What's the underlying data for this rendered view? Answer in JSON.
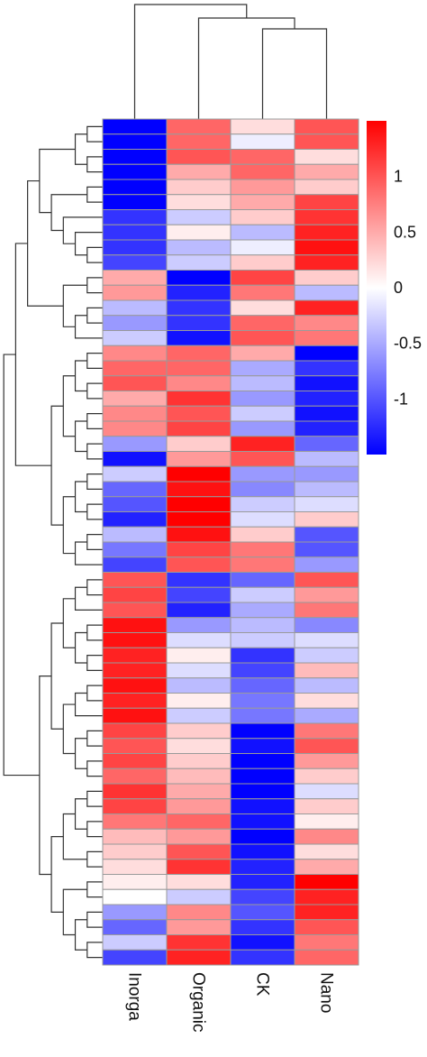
{
  "chart_data": {
    "type": "heatmap",
    "title": "",
    "columns": [
      "Inorga",
      "Organic",
      "CK",
      "Nano"
    ],
    "legend": {
      "position": "right",
      "ticks": [
        1,
        0.5,
        0,
        -0.5,
        -1
      ],
      "tick_labels": [
        "1",
        "0.5",
        "0",
        "-0.5",
        "-1"
      ],
      "range": [
        -1.5,
        1.5
      ],
      "low_color": "#0000ff",
      "mid_color": "#ffffff",
      "high_color": "#ff0000"
    },
    "row_dendrogram": true,
    "column_dendrogram": true,
    "values": [
      [
        -1.5,
        0.9,
        0.2,
        1.0
      ],
      [
        -1.5,
        0.9,
        -0.1,
        1.0
      ],
      [
        -1.5,
        1.0,
        0.9,
        0.2
      ],
      [
        -1.5,
        0.5,
        0.9,
        0.5
      ],
      [
        -1.5,
        0.3,
        0.6,
        0.3
      ],
      [
        -1.5,
        0.2,
        0.5,
        1.1
      ],
      [
        -1.2,
        -0.3,
        0.3,
        1.2
      ],
      [
        -1.2,
        0.1,
        -0.4,
        1.3
      ],
      [
        -1.2,
        -0.4,
        -0.1,
        1.4
      ],
      [
        -1.1,
        -0.3,
        0.3,
        1.3
      ],
      [
        0.5,
        -1.5,
        1.1,
        0.3
      ],
      [
        0.6,
        -1.3,
        0.8,
        -0.4
      ],
      [
        -0.4,
        -1.2,
        0.2,
        1.3
      ],
      [
        -0.6,
        -1.2,
        0.9,
        0.7
      ],
      [
        -0.3,
        -1.4,
        1.0,
        0.8
      ],
      [
        0.7,
        0.9,
        0.5,
        -1.5
      ],
      [
        0.9,
        0.9,
        -0.5,
        -1.2
      ],
      [
        1.0,
        0.7,
        -0.4,
        -1.4
      ],
      [
        0.5,
        1.2,
        -0.6,
        -1.3
      ],
      [
        0.7,
        1.0,
        -0.3,
        -1.4
      ],
      [
        0.7,
        1.1,
        -0.6,
        -1.3
      ],
      [
        -0.6,
        0.3,
        1.3,
        -0.9
      ],
      [
        -1.4,
        0.6,
        1.0,
        -0.4
      ],
      [
        -0.3,
        1.5,
        -0.6,
        -0.6
      ],
      [
        -0.9,
        1.4,
        -0.7,
        -0.4
      ],
      [
        -1.0,
        1.5,
        -0.3,
        -0.2
      ],
      [
        -1.3,
        1.5,
        -0.2,
        0.3
      ],
      [
        -0.4,
        1.4,
        0.3,
        -1.0
      ],
      [
        -0.8,
        1.1,
        0.8,
        -1.0
      ],
      [
        -1.1,
        1.0,
        0.8,
        -0.6
      ],
      [
        1.0,
        -1.2,
        -0.9,
        1.0
      ],
      [
        1.1,
        -1.1,
        -0.3,
        0.6
      ],
      [
        1.0,
        -1.3,
        -0.5,
        0.8
      ],
      [
        1.4,
        -0.6,
        -0.4,
        -0.7
      ],
      [
        1.4,
        -0.2,
        -0.3,
        -0.2
      ],
      [
        1.3,
        0.1,
        -1.2,
        -0.3
      ],
      [
        1.3,
        -0.2,
        -1.1,
        0.4
      ],
      [
        1.4,
        -0.4,
        -0.9,
        -0.4
      ],
      [
        1.3,
        0.1,
        -0.8,
        0.2
      ],
      [
        1.4,
        -0.3,
        -0.8,
        -0.5
      ],
      [
        1.1,
        0.3,
        -1.5,
        0.8
      ],
      [
        1.0,
        0.2,
        -1.4,
        1.0
      ],
      [
        1.1,
        0.3,
        -1.5,
        0.6
      ],
      [
        0.9,
        0.4,
        -1.5,
        0.3
      ],
      [
        1.2,
        0.5,
        -1.5,
        -0.2
      ],
      [
        1.1,
        0.6,
        -1.4,
        0.3
      ],
      [
        0.8,
        0.9,
        -1.4,
        0.1
      ],
      [
        0.4,
        0.6,
        -1.5,
        0.7
      ],
      [
        0.3,
        1.0,
        -1.4,
        0.2
      ],
      [
        0.2,
        1.2,
        -1.3,
        0.5
      ],
      [
        0.1,
        0.2,
        -1.3,
        1.5
      ],
      [
        0.0,
        -0.3,
        -1.1,
        1.3
      ],
      [
        -0.6,
        0.7,
        -1.0,
        1.3
      ],
      [
        -0.9,
        0.6,
        -1.2,
        1.0
      ],
      [
        -0.3,
        1.2,
        -1.4,
        0.8
      ],
      [
        -1.1,
        1.3,
        -1.2,
        0.9
      ]
    ]
  }
}
